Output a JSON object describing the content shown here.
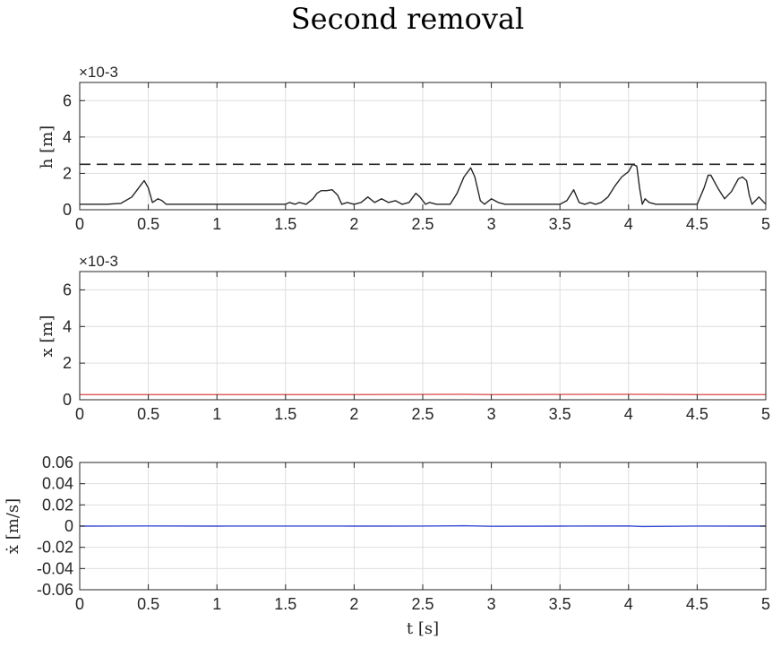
{
  "figure": {
    "title": "Second removal"
  },
  "chart_data": [
    {
      "type": "line",
      "ylabel": "h [m]",
      "xlabel": "",
      "exponent_label": "×10-3",
      "xlim": [
        0,
        5
      ],
      "ylim": [
        0,
        0.007
      ],
      "xticks": [
        0,
        0.5,
        1,
        1.5,
        2,
        2.5,
        3,
        3.5,
        4,
        4.5,
        5
      ],
      "xtick_labels": [
        "0",
        "0.5",
        "1",
        "1.5",
        "2",
        "2.5",
        "3",
        "3.5",
        "4",
        "4.5",
        "5"
      ],
      "yticks": [
        0,
        0.002,
        0.004,
        0.006
      ],
      "ytick_labels": [
        "0",
        "2",
        "4",
        "6"
      ],
      "grid": true,
      "series": [
        {
          "color": "#262626",
          "x": [
            0.0,
            0.2,
            0.3,
            0.38,
            0.44,
            0.47,
            0.5,
            0.53,
            0.57,
            0.6,
            0.63,
            0.67,
            0.7,
            0.8,
            1.0,
            1.2,
            1.4,
            1.5,
            1.53,
            1.57,
            1.6,
            1.65,
            1.7,
            1.73,
            1.76,
            1.8,
            1.84,
            1.88,
            1.91,
            1.95,
            2.0,
            2.05,
            2.1,
            2.15,
            2.2,
            2.25,
            2.3,
            2.35,
            2.4,
            2.45,
            2.48,
            2.52,
            2.55,
            2.6,
            2.7,
            2.75,
            2.8,
            2.85,
            2.88,
            2.92,
            2.95,
            3.0,
            3.05,
            3.1,
            3.2,
            3.3,
            3.4,
            3.5,
            3.55,
            3.6,
            3.64,
            3.68,
            3.72,
            3.76,
            3.8,
            3.85,
            3.9,
            3.95,
            4.0,
            4.03,
            4.06,
            4.08,
            4.1,
            4.12,
            4.15,
            4.2,
            4.25,
            4.3,
            4.4,
            4.5,
            4.55,
            4.58,
            4.6,
            4.65,
            4.7,
            4.75,
            4.8,
            4.83,
            4.86,
            4.88,
            4.9,
            4.95,
            5.0
          ],
          "y": [
            0.0003,
            0.0003,
            0.00035,
            0.0007,
            0.0013,
            0.0016,
            0.0012,
            0.0004,
            0.0006,
            0.0005,
            0.0003,
            0.0003,
            0.0003,
            0.0003,
            0.0003,
            0.0003,
            0.0003,
            0.0003,
            0.0004,
            0.0003,
            0.0004,
            0.0003,
            0.0006,
            0.0009,
            0.00105,
            0.00105,
            0.0011,
            0.0008,
            0.0003,
            0.0004,
            0.0003,
            0.0004,
            0.0007,
            0.0004,
            0.0006,
            0.0004,
            0.0005,
            0.0003,
            0.0004,
            0.0009,
            0.0007,
            0.0003,
            0.0004,
            0.0003,
            0.0003,
            0.0009,
            0.0018,
            0.0023,
            0.0018,
            0.0005,
            0.0003,
            0.0006,
            0.0004,
            0.0003,
            0.0003,
            0.0003,
            0.0003,
            0.0003,
            0.0005,
            0.0011,
            0.0004,
            0.0003,
            0.0004,
            0.0003,
            0.0004,
            0.0007,
            0.0013,
            0.0018,
            0.0021,
            0.0025,
            0.0024,
            0.0012,
            0.0003,
            0.0006,
            0.0004,
            0.0003,
            0.0003,
            0.0003,
            0.0003,
            0.0003,
            0.0012,
            0.0019,
            0.0019,
            0.0012,
            0.0006,
            0.001,
            0.0017,
            0.0018,
            0.0016,
            0.0008,
            0.0003,
            0.0007,
            0.0003
          ]
        },
        {
          "color": "#262626",
          "style": "dashed",
          "x": [
            0,
            5
          ],
          "y": [
            0.0025,
            0.0025
          ]
        }
      ]
    },
    {
      "type": "line",
      "ylabel": "x [m]",
      "xlabel": "",
      "exponent_label": "×10-3",
      "xlim": [
        0,
        5
      ],
      "ylim": [
        0,
        0.007
      ],
      "xticks": [
        0,
        0.5,
        1,
        1.5,
        2,
        2.5,
        3,
        3.5,
        4,
        4.5,
        5
      ],
      "xtick_labels": [
        "0",
        "0.5",
        "1",
        "1.5",
        "2",
        "2.5",
        "3",
        "3.5",
        "4",
        "4.5",
        "5"
      ],
      "yticks": [
        0,
        0.002,
        0.004,
        0.006
      ],
      "ytick_labels": [
        "0",
        "2",
        "4",
        "6"
      ],
      "grid": true,
      "series": [
        {
          "color": "#e05555",
          "x": [
            0,
            1,
            2,
            2.8,
            3,
            4,
            4.5,
            5
          ],
          "y": [
            0.00028,
            0.00028,
            0.00028,
            0.0003,
            0.00028,
            0.0003,
            0.00028,
            0.00028
          ]
        }
      ]
    },
    {
      "type": "line",
      "ylabel": "ẋ [m/s]",
      "xlabel": "t [s]",
      "exponent_label": "",
      "xlim": [
        0,
        5
      ],
      "ylim": [
        -0.06,
        0.06
      ],
      "xticks": [
        0,
        0.5,
        1,
        1.5,
        2,
        2.5,
        3,
        3.5,
        4,
        4.5,
        5
      ],
      "xtick_labels": [
        "0",
        "0.5",
        "1",
        "1.5",
        "2",
        "2.5",
        "3",
        "3.5",
        "4",
        "4.5",
        "5"
      ],
      "yticks": [
        -0.06,
        -0.04,
        -0.02,
        0,
        0.02,
        0.04,
        0.06
      ],
      "ytick_labels": [
        "-0.06",
        "-0.04",
        "-0.02",
        "0",
        "0.02",
        "0.04",
        "0.06"
      ],
      "grid": true,
      "series": [
        {
          "color": "#3a4bd6",
          "x": [
            0,
            0.5,
            1,
            1.5,
            2,
            2.5,
            2.8,
            3,
            3.5,
            4,
            4.1,
            4.5,
            5
          ],
          "y": [
            0.0,
            0.0002,
            0.0,
            0.0001,
            0.0,
            0.0001,
            0.0003,
            -0.0002,
            0.0,
            0.0002,
            -0.0003,
            0.0001,
            0.0
          ]
        }
      ]
    }
  ]
}
